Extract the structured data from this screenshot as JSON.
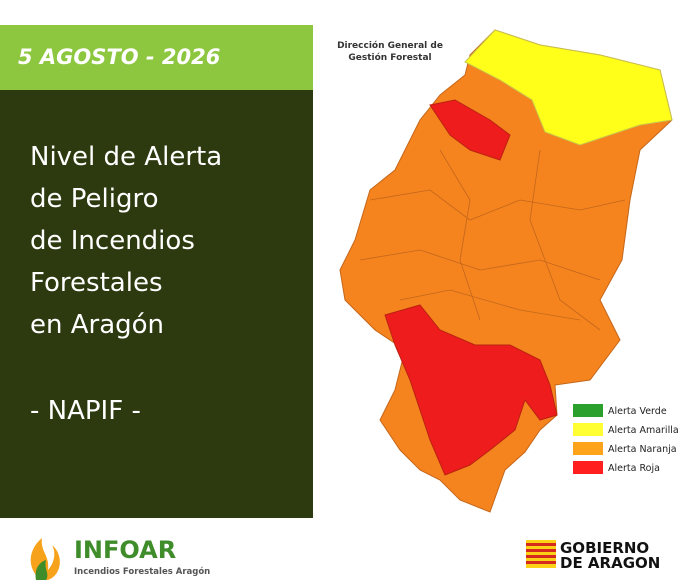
{
  "header": {
    "date": "5 AGOSTO - 2026"
  },
  "title": {
    "lines": [
      "Nivel de Alerta",
      "de Peligro",
      "de Incendios",
      "Forestales",
      "en Aragón"
    ],
    "subtitle": "- NAPIF -"
  },
  "map": {
    "credit": [
      "Dirección General de",
      "Gestión Forestal"
    ],
    "legend": [
      {
        "label": "Alerta Verde",
        "color": "#2ca02c"
      },
      {
        "label": "Alerta Amarilla",
        "color": "#ffff33"
      },
      {
        "label": "Alerta Naranja",
        "color": "#ffa31a"
      },
      {
        "label": "Alerta Roja",
        "color": "#ff1f1f"
      }
    ]
  },
  "footer": {
    "logo": "INFOAR",
    "tagline": "Incendios Forestales Aragón",
    "government": [
      "GOBIERNO",
      "DE ARAGON"
    ]
  }
}
